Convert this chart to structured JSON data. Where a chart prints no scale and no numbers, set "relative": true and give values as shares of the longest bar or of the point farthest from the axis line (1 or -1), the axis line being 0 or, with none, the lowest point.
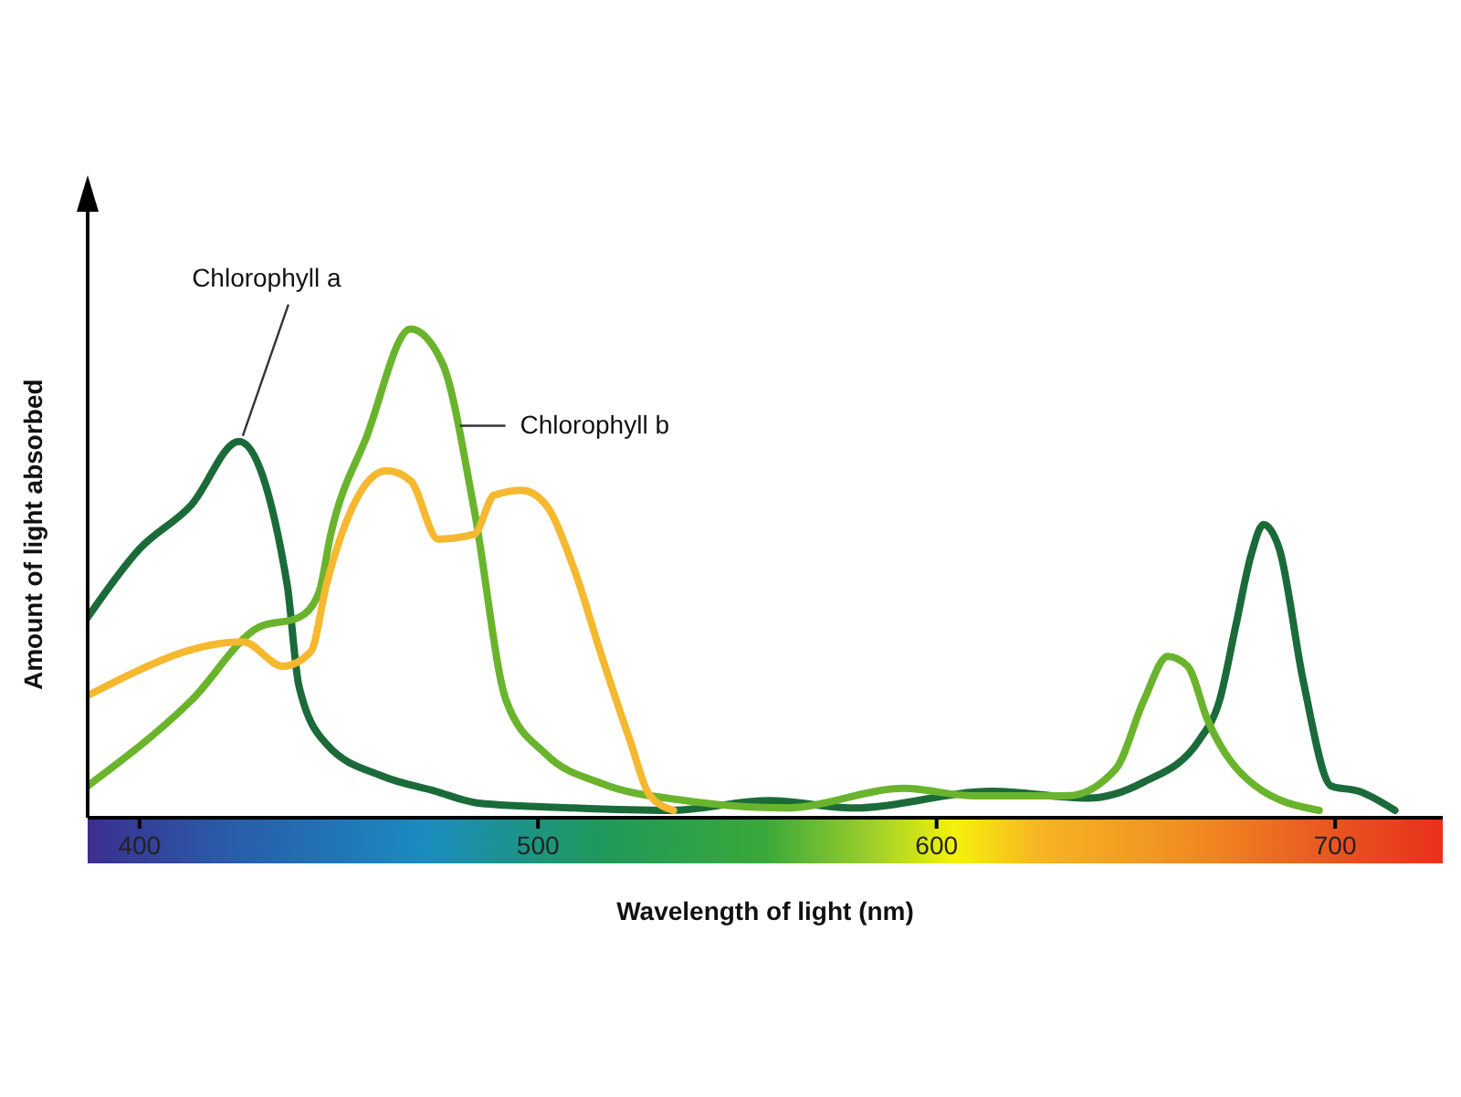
{
  "chart_data": {
    "type": "line",
    "relative": true,
    "xlabel": "Wavelength of light (nm)",
    "ylabel": "Amount of light absorbed",
    "xlim": [
      387,
      727
    ],
    "xticks": [
      400,
      500,
      600,
      700
    ],
    "grid": false,
    "legend": false,
    "marker": "none",
    "line_style": "solid",
    "series": [
      {
        "name": "Chlorophyll a",
        "color": "#1b6b3a",
        "x": [
          387,
          400,
          413,
          425,
          437,
          440,
          447,
          461,
          474,
          485,
          509,
          533,
          558,
          579,
          614,
          638,
          652,
          666,
          671,
          675,
          679,
          682,
          686,
          692,
          699,
          706,
          715
        ],
        "values": [
          0.41,
          0.55,
          0.64,
          0.77,
          0.48,
          0.27,
          0.15,
          0.085,
          0.055,
          0.03,
          0.02,
          0.015,
          0.035,
          0.02,
          0.054,
          0.04,
          0.073,
          0.16,
          0.24,
          0.39,
          0.54,
          0.6,
          0.55,
          0.28,
          0.065,
          0.054,
          0.015
        ]
      },
      {
        "name": "Chlorophyll b",
        "color": "#6ab42d",
        "x": [
          387,
          413,
          430,
          440,
          445,
          448,
          457,
          468,
          476,
          484,
          492,
          502,
          516,
          537,
          562,
          592,
          609,
          633,
          645,
          652,
          658,
          663,
          668,
          680,
          696
        ],
        "values": [
          0.065,
          0.24,
          0.39,
          0.41,
          0.46,
          0.58,
          0.78,
          1.0,
          0.93,
          0.63,
          0.24,
          0.13,
          0.07,
          0.035,
          0.02,
          0.06,
          0.045,
          0.045,
          0.1,
          0.24,
          0.33,
          0.31,
          0.2,
          0.065,
          0.015
        ]
      },
      {
        "color": "#f5b82e",
        "x": [
          387,
          426,
          436,
          443,
          447,
          455,
          462,
          468,
          475,
          484,
          489,
          496,
          502,
          509,
          516,
          523,
          528,
          534
        ],
        "values": [
          0.25,
          0.36,
          0.31,
          0.34,
          0.48,
          0.66,
          0.71,
          0.69,
          0.57,
          0.58,
          0.66,
          0.67,
          0.64,
          0.51,
          0.33,
          0.16,
          0.046,
          0.015
        ]
      }
    ]
  }
}
